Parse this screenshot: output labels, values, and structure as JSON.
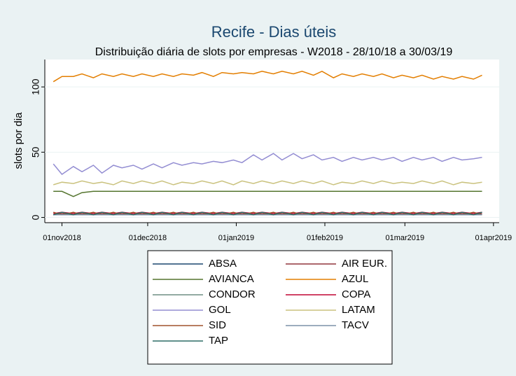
{
  "chart_data": {
    "type": "line",
    "title": "Recife - Dias úteis",
    "subtitle": "Distribuição diária de slots por empresas - W2018 - 28/10/18 a 30/03/19",
    "y_label": "slots por dia",
    "x": [
      "2018-10-29",
      "2018-11-01",
      "2018-11-05",
      "2018-11-08",
      "2018-11-12",
      "2018-11-15",
      "2018-11-19",
      "2018-11-22",
      "2018-11-26",
      "2018-11-29",
      "2018-12-03",
      "2018-12-06",
      "2018-12-10",
      "2018-12-13",
      "2018-12-17",
      "2018-12-20",
      "2018-12-24",
      "2018-12-27",
      "2018-12-31",
      "2019-01-03",
      "2019-01-07",
      "2019-01-10",
      "2019-01-14",
      "2019-01-17",
      "2019-01-21",
      "2019-01-24",
      "2019-01-28",
      "2019-01-31",
      "2019-02-04",
      "2019-02-07",
      "2019-02-11",
      "2019-02-14",
      "2019-02-18",
      "2019-02-21",
      "2019-02-25",
      "2019-02-28",
      "2019-03-04",
      "2019-03-07",
      "2019-03-11",
      "2019-03-14",
      "2019-03-18",
      "2019-03-21",
      "2019-03-25",
      "2019-03-28"
    ],
    "xlim": [
      "2018-10-26",
      "2019-04-03"
    ],
    "xticks": [
      {
        "value": "2018-11-01",
        "label": "01nov2018"
      },
      {
        "value": "2018-12-01",
        "label": "01dec2018"
      },
      {
        "value": "2019-01-01",
        "label": "01jan2019"
      },
      {
        "value": "2019-02-01",
        "label": "01feb2019"
      },
      {
        "value": "2019-03-01",
        "label": "01mar2019"
      },
      {
        "value": "2019-04-01",
        "label": "01apr2019"
      }
    ],
    "ylim": [
      -4,
      121
    ],
    "yticks": [
      0,
      50,
      100
    ],
    "grid": true,
    "legend": "bottom",
    "series": [
      {
        "name": "ABSA",
        "color": "#1a476f",
        "values": [
          2,
          2,
          2,
          2,
          2,
          2,
          2,
          2,
          2,
          2,
          2,
          2,
          2,
          2,
          2,
          2,
          2,
          2,
          2,
          2,
          2,
          2,
          2,
          2,
          2,
          2,
          2,
          2,
          2,
          2,
          2,
          2,
          2,
          2,
          2,
          2,
          2,
          2,
          2,
          2,
          2,
          2,
          2,
          2
        ]
      },
      {
        "name": "AIR EUR.",
        "color": "#90353b",
        "values": [
          2,
          3,
          2,
          3,
          2,
          3,
          2,
          3,
          2,
          3,
          2,
          3,
          2,
          3,
          2,
          3,
          2,
          3,
          2,
          3,
          2,
          3,
          2,
          3,
          2,
          3,
          2,
          3,
          2,
          3,
          2,
          3,
          2,
          3,
          2,
          3,
          2,
          3,
          2,
          3,
          2,
          3,
          2,
          3
        ]
      },
      {
        "name": "AVIANCA",
        "color": "#55752f",
        "values": [
          20,
          20,
          16,
          19,
          20,
          20,
          20,
          20,
          20,
          20,
          20,
          20,
          20,
          20,
          20,
          20,
          20,
          20,
          20,
          20,
          20,
          20,
          20,
          20,
          20,
          20,
          20,
          20,
          20,
          20,
          20,
          20,
          20,
          20,
          20,
          20,
          20,
          20,
          20,
          20,
          20,
          20,
          20,
          20
        ]
      },
      {
        "name": "AZUL",
        "color": "#e37e00",
        "values": [
          104,
          108,
          108,
          110,
          107,
          110,
          108,
          110,
          108,
          110,
          108,
          110,
          108,
          110,
          109,
          111,
          108,
          111,
          110,
          111,
          110,
          112,
          110,
          112,
          110,
          112,
          109,
          112,
          107,
          110,
          108,
          110,
          108,
          110,
          107,
          109,
          107,
          109,
          106,
          108,
          106,
          108,
          106,
          109
        ]
      },
      {
        "name": "CONDOR",
        "color": "#6e8e84",
        "values": [
          2,
          2,
          2,
          2,
          2,
          2,
          2,
          2,
          2,
          2,
          2,
          2,
          2,
          2,
          2,
          2,
          2,
          2,
          2,
          2,
          2,
          2,
          2,
          2,
          2,
          2,
          2,
          2,
          2,
          2,
          2,
          2,
          2,
          2,
          2,
          2,
          2,
          2,
          2,
          2,
          2,
          2,
          2,
          2
        ]
      },
      {
        "name": "COPA",
        "color": "#c10534",
        "values": [
          3,
          4,
          3,
          4,
          3,
          4,
          3,
          4,
          3,
          4,
          3,
          4,
          3,
          4,
          3,
          4,
          3,
          4,
          3,
          4,
          3,
          4,
          3,
          4,
          3,
          4,
          3,
          4,
          3,
          4,
          3,
          4,
          3,
          4,
          3,
          4,
          3,
          4,
          3,
          4,
          3,
          4,
          3,
          4
        ]
      },
      {
        "name": "GOL",
        "color": "#938dd2",
        "values": [
          41,
          33,
          39,
          35,
          40,
          34,
          40,
          38,
          40,
          37,
          41,
          38,
          42,
          40,
          42,
          41,
          43,
          42,
          44,
          42,
          48,
          44,
          49,
          44,
          49,
          45,
          48,
          44,
          46,
          43,
          46,
          44,
          46,
          44,
          46,
          43,
          46,
          44,
          46,
          43,
          46,
          44,
          45,
          46
        ]
      },
      {
        "name": "LATAM",
        "color": "#cac27e",
        "values": [
          25,
          27,
          26,
          28,
          26,
          27,
          25,
          28,
          26,
          28,
          26,
          28,
          25,
          27,
          26,
          28,
          26,
          28,
          25,
          28,
          26,
          28,
          26,
          28,
          26,
          28,
          26,
          28,
          25,
          27,
          26,
          28,
          26,
          28,
          26,
          27,
          26,
          28,
          26,
          28,
          25,
          27,
          26,
          27
        ]
      },
      {
        "name": "SID",
        "color": "#a0522d",
        "values": [
          4,
          2,
          4,
          2,
          4,
          2,
          4,
          2,
          4,
          2,
          4,
          2,
          4,
          2,
          4,
          2,
          4,
          2,
          4,
          2,
          4,
          2,
          4,
          2,
          4,
          2,
          4,
          2,
          4,
          2,
          4,
          2,
          4,
          2,
          4,
          2,
          4,
          2,
          4,
          2,
          4,
          2,
          4,
          2
        ]
      },
      {
        "name": "TACV",
        "color": "#7b92a8",
        "values": [
          2,
          2,
          2,
          2,
          2,
          2,
          2,
          2,
          2,
          2,
          2,
          2,
          2,
          2,
          2,
          2,
          2,
          2,
          2,
          2,
          2,
          2,
          2,
          2,
          2,
          2,
          2,
          2,
          2,
          2,
          2,
          2,
          2,
          2,
          2,
          2,
          2,
          2,
          2,
          2,
          2,
          2,
          2,
          2
        ]
      },
      {
        "name": "TAP",
        "color": "#2d6d66",
        "values": [
          2,
          4,
          2,
          4,
          2,
          4,
          2,
          4,
          2,
          4,
          2,
          4,
          2,
          4,
          2,
          4,
          2,
          4,
          2,
          4,
          2,
          4,
          2,
          4,
          2,
          4,
          2,
          4,
          2,
          4,
          2,
          4,
          2,
          4,
          2,
          4,
          2,
          4,
          2,
          4,
          2,
          4,
          2,
          4
        ]
      }
    ]
  }
}
